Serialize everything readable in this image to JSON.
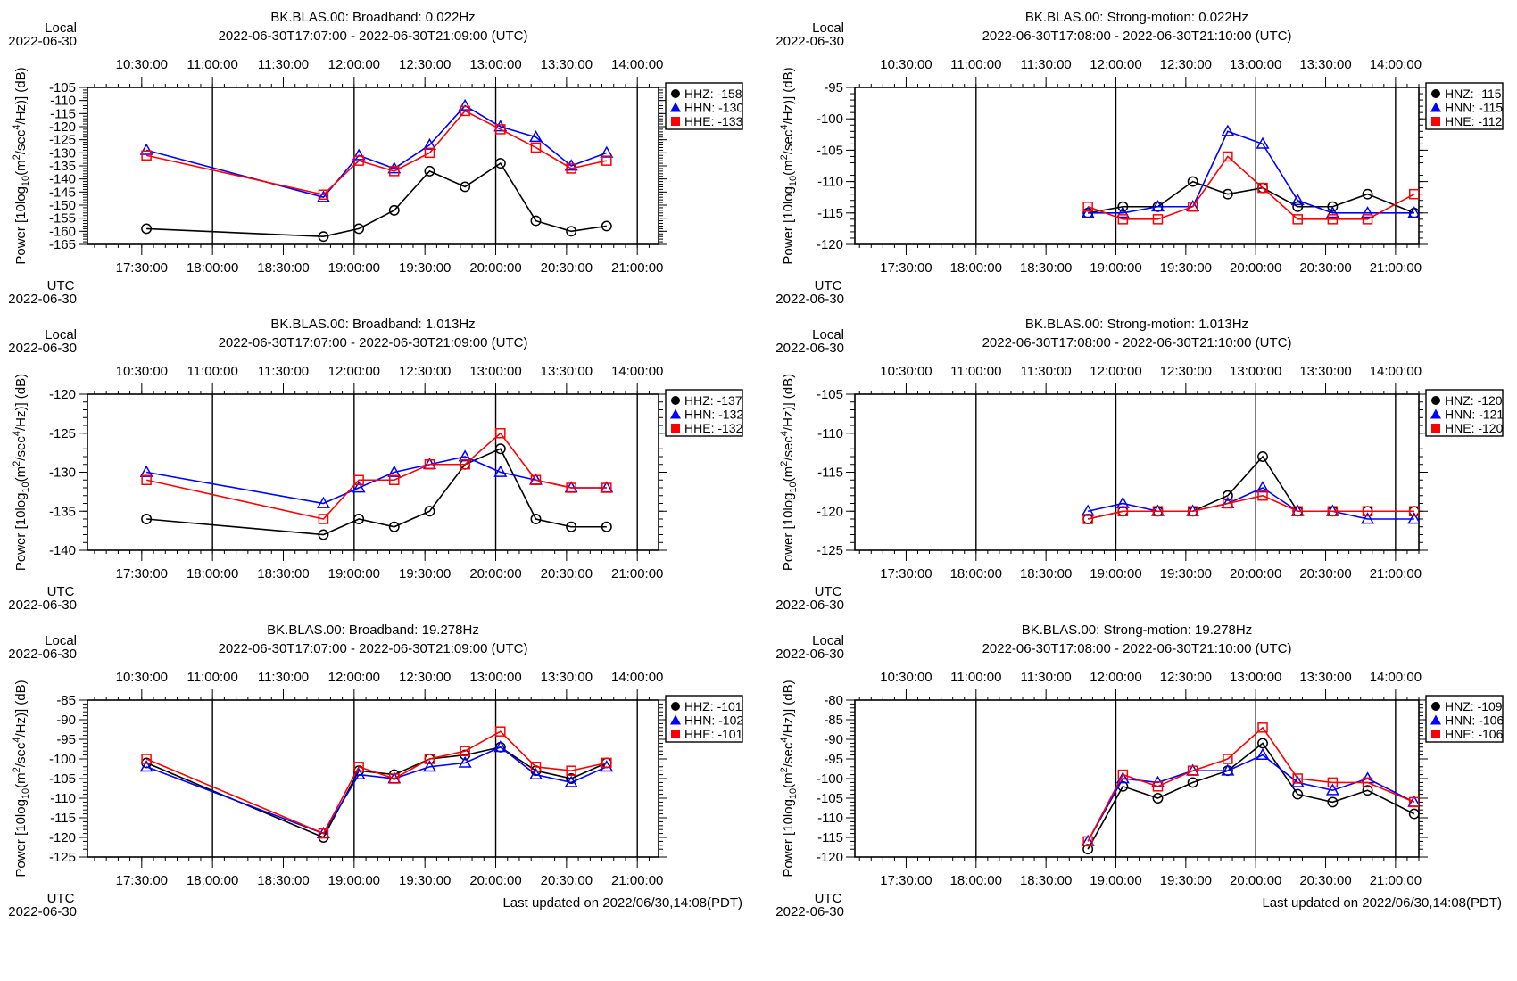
{
  "page": {
    "footer_broadband": "Last updated on 2022/06/30,14:08(PDT)",
    "footer_strong": "Last updated on 2022/06/30,14:08(PDT)"
  },
  "common": {
    "local_label": "Local",
    "utc_label": "UTC",
    "date": "2022-06-30",
    "ylabel_prefix": "Power [10log",
    "ylabel_sub": "10",
    "ylabel_mid": "(m",
    "ylabel_sup1": "2",
    "ylabel_mid2": "/sec",
    "ylabel_sup2": "4",
    "ylabel_end": "/Hz)] (dB)",
    "top_ticks": [
      "10:30:00",
      "11:00:00",
      "11:30:00",
      "12:00:00",
      "12:30:00",
      "13:00:00",
      "13:30:00",
      "14:00:00"
    ],
    "bottom_ticks": [
      "17:30:00",
      "18:00:00",
      "18:30:00",
      "19:00:00",
      "19:30:00",
      "20:00:00",
      "20:30:00",
      "21:00:00"
    ]
  },
  "chart_data": [
    {
      "type": "line",
      "title": "BK.BLAS.00: Broadband: 0.022Hz",
      "subtitle": "2022-06-30T17:07:00 - 2022-06-30T21:09:00 (UTC)",
      "x_range": [
        "17:07",
        "21:09"
      ],
      "ylim": [
        -165,
        -105
      ],
      "ystep": 5,
      "x": [
        "17:32",
        "18:47",
        "19:02",
        "19:17",
        "19:32",
        "19:47",
        "20:02",
        "20:17",
        "20:32",
        "20:47"
      ],
      "series": [
        {
          "name": "HHZ",
          "legend_value": "-158",
          "color": "#000000",
          "marker": "circle",
          "values": [
            -159,
            -162,
            -159,
            -152,
            -137,
            -143,
            -134,
            -156,
            -160,
            -158
          ]
        },
        {
          "name": "HHN",
          "legend_value": "-130",
          "color": "#0000ff",
          "marker": "triangle",
          "values": [
            -129,
            -147,
            -131,
            -136,
            -127,
            -112,
            -120,
            -124,
            -135,
            -130
          ]
        },
        {
          "name": "HHE",
          "legend_value": "-133",
          "color": "#ff0000",
          "marker": "square",
          "values": [
            -131,
            -146,
            -133,
            -137,
            -130,
            -114,
            -121,
            -128,
            -136,
            -133
          ]
        }
      ]
    },
    {
      "type": "line",
      "title": "BK.BLAS.00: Strong-motion: 0.022Hz",
      "subtitle": "2022-06-30T17:08:00 - 2022-06-30T21:10:00 (UTC)",
      "x_range": [
        "17:08",
        "21:10"
      ],
      "ylim": [
        -120,
        -95
      ],
      "ystep": 5,
      "x": [
        "18:48",
        "19:03",
        "19:18",
        "19:33",
        "19:48",
        "20:03",
        "20:18",
        "20:33",
        "20:48",
        "21:08"
      ],
      "series": [
        {
          "name": "HNZ",
          "legend_value": "-115",
          "color": "#000000",
          "marker": "circle",
          "values": [
            -115,
            -114,
            -114,
            -110,
            -112,
            -111,
            -114,
            -114,
            -112,
            -115
          ]
        },
        {
          "name": "HNN",
          "legend_value": "-115",
          "color": "#0000ff",
          "marker": "triangle",
          "values": [
            -115,
            -115,
            -114,
            -114,
            -102,
            -104,
            -113,
            -115,
            -115,
            -115
          ]
        },
        {
          "name": "HNE",
          "legend_value": "-112",
          "color": "#ff0000",
          "marker": "square",
          "values": [
            -114,
            -116,
            -116,
            -114,
            -106,
            -111,
            -116,
            -116,
            -116,
            -112
          ]
        }
      ]
    },
    {
      "type": "line",
      "title": "BK.BLAS.00: Broadband: 1.013Hz",
      "subtitle": "2022-06-30T17:07:00 - 2022-06-30T21:09:00 (UTC)",
      "x_range": [
        "17:07",
        "21:09"
      ],
      "ylim": [
        -140,
        -120
      ],
      "ystep": 5,
      "x": [
        "17:32",
        "18:47",
        "19:02",
        "19:17",
        "19:32",
        "19:47",
        "20:02",
        "20:17",
        "20:32",
        "20:47"
      ],
      "series": [
        {
          "name": "HHZ",
          "legend_value": "-137",
          "color": "#000000",
          "marker": "circle",
          "values": [
            -136,
            -138,
            -136,
            -137,
            -135,
            -129,
            -127,
            -136,
            -137,
            -137
          ]
        },
        {
          "name": "HHN",
          "legend_value": "-132",
          "color": "#0000ff",
          "marker": "triangle",
          "values": [
            -130,
            -134,
            -132,
            -130,
            -129,
            -128,
            -130,
            -131,
            -132,
            -132
          ]
        },
        {
          "name": "HHE",
          "legend_value": "-132",
          "color": "#ff0000",
          "marker": "square",
          "values": [
            -131,
            -136,
            -131,
            -131,
            -129,
            -129,
            -125,
            -131,
            -132,
            -132
          ]
        }
      ]
    },
    {
      "type": "line",
      "title": "BK.BLAS.00: Strong-motion: 1.013Hz",
      "subtitle": "2022-06-30T17:08:00 - 2022-06-30T21:10:00 (UTC)",
      "x_range": [
        "17:08",
        "21:10"
      ],
      "ylim": [
        -125,
        -105
      ],
      "ystep": 5,
      "x": [
        "18:48",
        "19:03",
        "19:18",
        "19:33",
        "19:48",
        "20:03",
        "20:18",
        "20:33",
        "20:48",
        "21:08"
      ],
      "series": [
        {
          "name": "HNZ",
          "legend_value": "-120",
          "color": "#000000",
          "marker": "circle",
          "values": [
            -121,
            -120,
            -120,
            -120,
            -118,
            -113,
            -120,
            -120,
            -120,
            -120
          ]
        },
        {
          "name": "HNN",
          "legend_value": "-121",
          "color": "#0000ff",
          "marker": "triangle",
          "values": [
            -120,
            -119,
            -120,
            -120,
            -119,
            -117,
            -120,
            -120,
            -121,
            -121
          ]
        },
        {
          "name": "HNE",
          "legend_value": "-120",
          "color": "#ff0000",
          "marker": "square",
          "values": [
            -121,
            -120,
            -120,
            -120,
            -119,
            -118,
            -120,
            -120,
            -120,
            -120
          ]
        }
      ]
    },
    {
      "type": "line",
      "title": "BK.BLAS.00: Broadband: 19.278Hz",
      "subtitle": "2022-06-30T17:07:00 - 2022-06-30T21:09:00 (UTC)",
      "x_range": [
        "17:07",
        "21:09"
      ],
      "ylim": [
        -125,
        -85
      ],
      "ystep": 5,
      "x": [
        "17:32",
        "18:47",
        "19:02",
        "19:17",
        "19:32",
        "19:47",
        "20:02",
        "20:17",
        "20:32",
        "20:47"
      ],
      "series": [
        {
          "name": "HHZ",
          "legend_value": "-101",
          "color": "#000000",
          "marker": "circle",
          "values": [
            -101,
            -120,
            -103,
            -104,
            -100,
            -99,
            -97,
            -103,
            -105,
            -101
          ]
        },
        {
          "name": "HHN",
          "legend_value": "-102",
          "color": "#0000ff",
          "marker": "triangle",
          "values": [
            -102,
            -119,
            -104,
            -105,
            -102,
            -101,
            -97,
            -104,
            -106,
            -102
          ]
        },
        {
          "name": "HHE",
          "legend_value": "-101",
          "color": "#ff0000",
          "marker": "square",
          "values": [
            -100,
            -119,
            -102,
            -105,
            -100,
            -98,
            -93,
            -102,
            -103,
            -101
          ]
        }
      ]
    },
    {
      "type": "line",
      "title": "BK.BLAS.00: Strong-motion: 19.278Hz",
      "subtitle": "2022-06-30T17:08:00 - 2022-06-30T21:10:00 (UTC)",
      "x_range": [
        "17:08",
        "21:10"
      ],
      "ylim": [
        -120,
        -80
      ],
      "ystep": 5,
      "x": [
        "18:48",
        "19:03",
        "19:18",
        "19:33",
        "19:48",
        "20:03",
        "20:18",
        "20:33",
        "20:48",
        "21:08"
      ],
      "series": [
        {
          "name": "HNZ",
          "legend_value": "-109",
          "color": "#000000",
          "marker": "circle",
          "values": [
            -118,
            -102,
            -105,
            -101,
            -98,
            -91,
            -104,
            -106,
            -103,
            -109
          ]
        },
        {
          "name": "HNN",
          "legend_value": "-106",
          "color": "#0000ff",
          "marker": "triangle",
          "values": [
            -116,
            -100,
            -101,
            -98,
            -98,
            -94,
            -101,
            -103,
            -100,
            -106
          ]
        },
        {
          "name": "HNE",
          "legend_value": "-106",
          "color": "#ff0000",
          "marker": "square",
          "values": [
            -116,
            -99,
            -102,
            -98,
            -95,
            -87,
            -100,
            -101,
            -101,
            -106
          ]
        }
      ]
    }
  ]
}
